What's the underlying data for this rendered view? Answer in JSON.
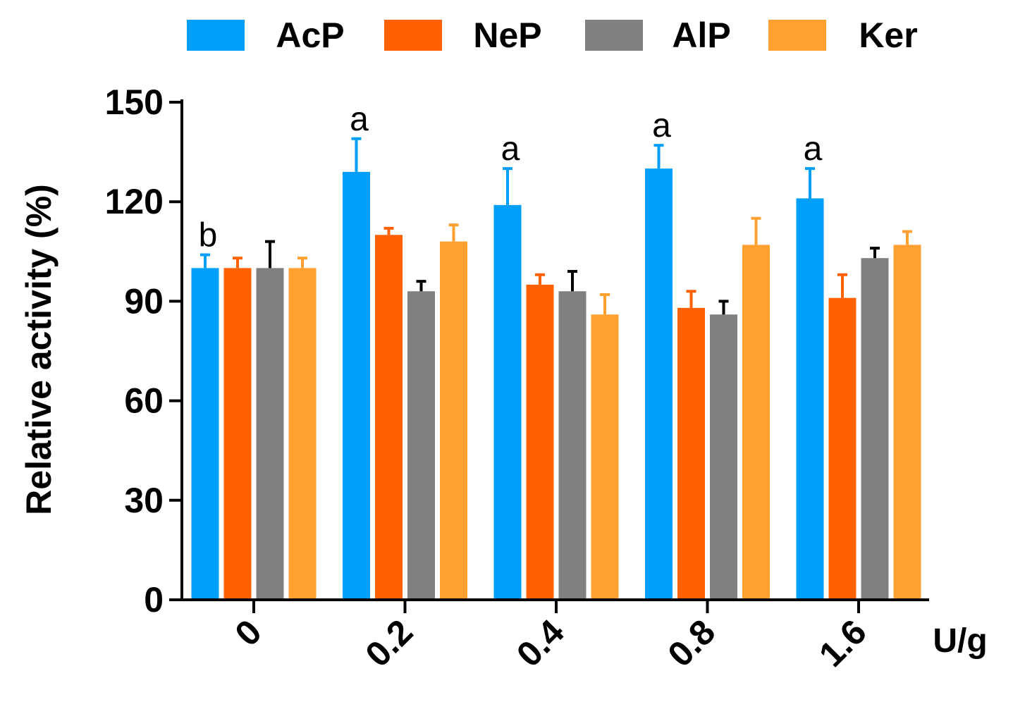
{
  "chart_data": {
    "type": "bar",
    "categories": [
      "0",
      "0.2",
      "0.4",
      "0.8",
      "1.6"
    ],
    "series": [
      {
        "name": "AcP",
        "color": "#00A0FA",
        "values": [
          100,
          129,
          119,
          130,
          121
        ],
        "errors": [
          4,
          10,
          11,
          7,
          9
        ]
      },
      {
        "name": "NeP",
        "color": "#FF6000",
        "values": [
          100,
          110,
          95,
          88,
          91
        ],
        "errors": [
          3,
          2,
          3,
          5,
          7
        ]
      },
      {
        "name": "AlP",
        "color": "#808080",
        "values": [
          100,
          93,
          93,
          86,
          103
        ],
        "errors": [
          8,
          3,
          6,
          4,
          3
        ]
      },
      {
        "name": "Ker",
        "color": "#FFA030",
        "values": [
          100,
          108,
          86,
          107,
          107
        ],
        "errors": [
          3,
          5,
          6,
          8,
          4
        ]
      }
    ],
    "significance": [
      "b",
      "a",
      "a",
      "a",
      "a"
    ],
    "xlabel": "U/g",
    "ylabel": "Relative activity (%)",
    "ylim": [
      0,
      150
    ],
    "yticks": [
      0,
      30,
      60,
      90,
      120,
      150
    ],
    "legend_position": "top",
    "grid": false
  }
}
